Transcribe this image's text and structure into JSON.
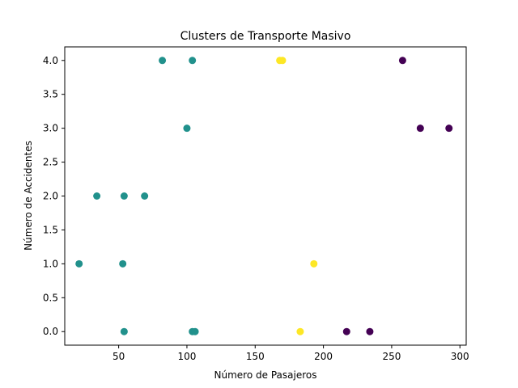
{
  "chart_data": {
    "type": "scatter",
    "title": "Clusters de Transporte Masivo",
    "xlabel": "Número de Pasajeros",
    "ylabel": "Número de Accidentes",
    "xlim": [
      10.5,
      304.6
    ],
    "ylim": [
      -0.2,
      4.2
    ],
    "xticks": [
      50,
      100,
      150,
      200,
      250,
      300
    ],
    "yticks": [
      0.0,
      0.5,
      1.0,
      1.5,
      2.0,
      2.5,
      3.0,
      3.5,
      4.0
    ],
    "grid": false,
    "legend": "none",
    "colors": {
      "cluster_0": "#440154",
      "cluster_1": "#21918c",
      "cluster_2": "#fde725"
    },
    "points": [
      {
        "x": 21,
        "y": 1,
        "cluster": 1
      },
      {
        "x": 34,
        "y": 2,
        "cluster": 1
      },
      {
        "x": 53,
        "y": 1,
        "cluster": 1
      },
      {
        "x": 54,
        "y": 2,
        "cluster": 1
      },
      {
        "x": 54,
        "y": 0,
        "cluster": 1
      },
      {
        "x": 69,
        "y": 2,
        "cluster": 1
      },
      {
        "x": 82,
        "y": 4,
        "cluster": 1
      },
      {
        "x": 100,
        "y": 3,
        "cluster": 1
      },
      {
        "x": 104,
        "y": 4,
        "cluster": 1
      },
      {
        "x": 104,
        "y": 0,
        "cluster": 1
      },
      {
        "x": 106,
        "y": 0,
        "cluster": 1
      },
      {
        "x": 168,
        "y": 4,
        "cluster": 2
      },
      {
        "x": 170,
        "y": 4,
        "cluster": 2
      },
      {
        "x": 183,
        "y": 0,
        "cluster": 2
      },
      {
        "x": 193,
        "y": 1,
        "cluster": 2
      },
      {
        "x": 217,
        "y": 0,
        "cluster": 0
      },
      {
        "x": 234,
        "y": 0,
        "cluster": 0
      },
      {
        "x": 258,
        "y": 4,
        "cluster": 0
      },
      {
        "x": 271,
        "y": 3,
        "cluster": 0
      },
      {
        "x": 292,
        "y": 3,
        "cluster": 0
      }
    ]
  }
}
